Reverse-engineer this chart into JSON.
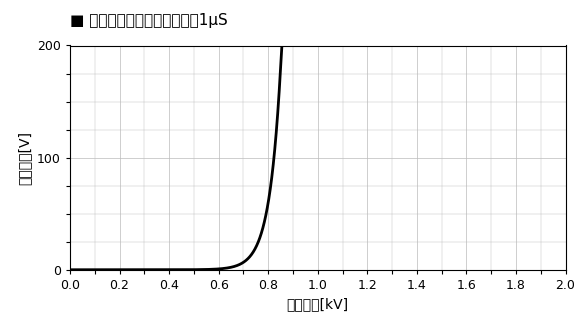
{
  "title_part1": "パルス減衰特性",
  "title_part2": "パルス帅1μS",
  "xlabel": "入力電圧[kV]",
  "ylabel": "出力電圧[V]",
  "xlim": [
    0,
    2.0
  ],
  "ylim": [
    0,
    200
  ],
  "xticks": [
    0,
    0.2,
    0.4,
    0.6,
    0.8,
    1.0,
    1.2,
    1.4,
    1.6,
    1.8,
    2.0
  ],
  "yticks": [
    0,
    100,
    200
  ],
  "line_color": "#000000",
  "line_width": 2.0,
  "background_color": "#ffffff",
  "grid_color": "#bbbbbb",
  "legend_marker_color": "#000000",
  "curve_x_threshold": 0.38,
  "curve_steepness": 60.0,
  "curve_y_max": 200
}
